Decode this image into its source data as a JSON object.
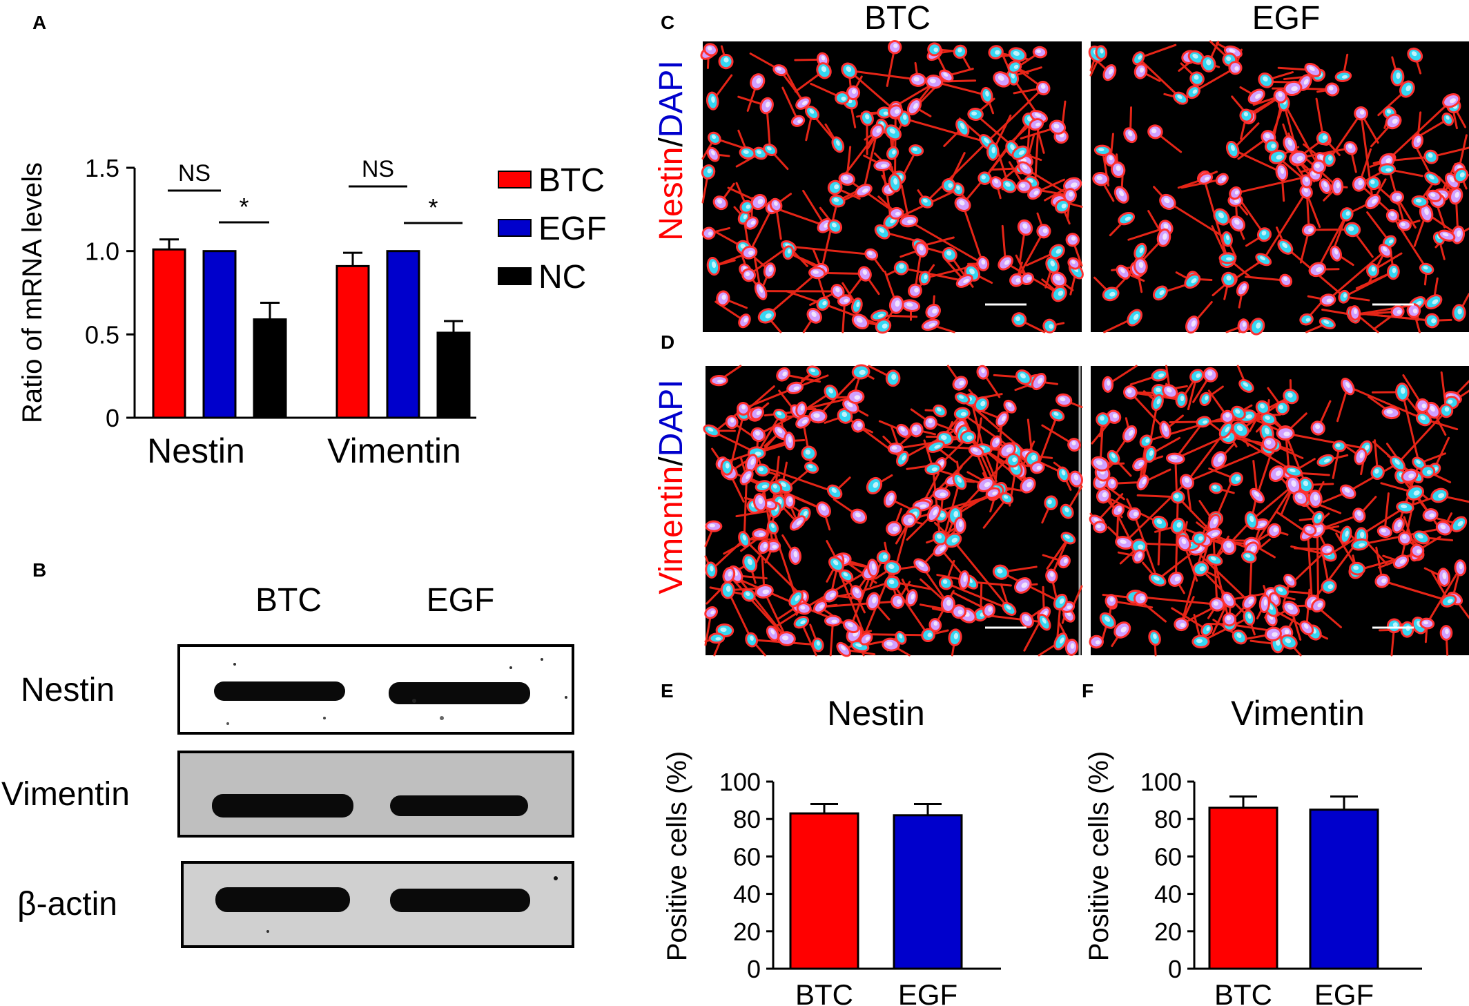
{
  "panels": {
    "A": "A",
    "B": "B",
    "C": "C",
    "D": "D",
    "E": "E",
    "F": "F"
  },
  "colors": {
    "BTC": "#ff0000",
    "EGF": "#0000cc",
    "NC": "#000000"
  },
  "microscopy": {
    "col_headers": [
      "BTC",
      "EGF"
    ],
    "row_labels": [
      {
        "marker": "Nestin",
        "sep": "/",
        "stain": "DAPI"
      },
      {
        "marker": "Vimentin",
        "sep": "/",
        "stain": "DAPI"
      }
    ]
  },
  "western_blot": {
    "lanes": [
      "BTC",
      "EGF"
    ],
    "rows": [
      "Nestin",
      "Vimentin",
      "β-actin"
    ]
  },
  "chart_data": [
    {
      "panel": "A",
      "type": "bar",
      "ylabel": "Ratio of mRNA levels",
      "categories": [
        "Nestin",
        "Vimentin"
      ],
      "series": [
        {
          "name": "BTC",
          "values": [
            1.01,
            0.91
          ],
          "errors": [
            0.06,
            0.08
          ]
        },
        {
          "name": "EGF",
          "values": [
            1.0,
            1.0
          ],
          "errors": [
            0,
            0
          ]
        },
        {
          "name": "NC",
          "values": [
            0.59,
            0.51
          ],
          "errors": [
            0.1,
            0.07
          ]
        }
      ],
      "ylim": [
        0,
        1.5
      ],
      "yticks": [
        "0",
        "0.5",
        "1.0",
        "1.5"
      ],
      "annotations": [
        "NS",
        "*",
        "NS",
        "*"
      ],
      "legend": "right"
    },
    {
      "panel": "E",
      "type": "bar",
      "title": "Nestin",
      "ylabel": "Positive cells (%)",
      "categories": [
        "BTC",
        "EGF"
      ],
      "values": [
        83,
        82
      ],
      "errors": [
        5,
        6
      ],
      "ylim": [
        0,
        100
      ],
      "yticks": [
        "0",
        "20",
        "40",
        "60",
        "80",
        "100"
      ]
    },
    {
      "panel": "F",
      "type": "bar",
      "title": "Vimentin",
      "ylabel": "Positive cells (%)",
      "categories": [
        "BTC",
        "EGF"
      ],
      "values": [
        86,
        85
      ],
      "errors": [
        6,
        7
      ],
      "ylim": [
        0,
        100
      ],
      "yticks": [
        "0",
        "20",
        "40",
        "60",
        "80",
        "100"
      ]
    }
  ]
}
